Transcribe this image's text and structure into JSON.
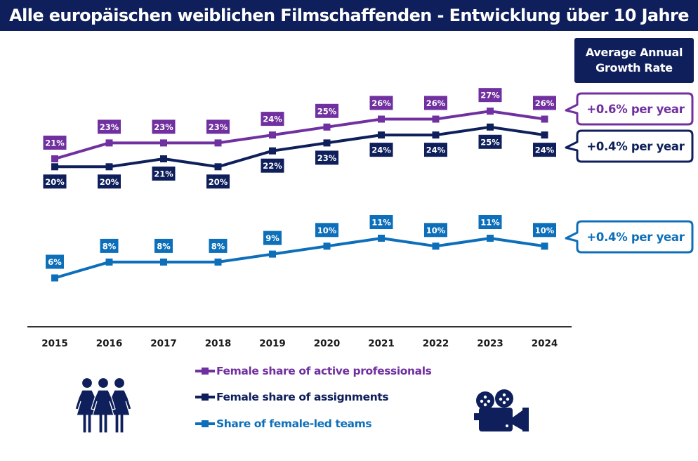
{
  "header": {
    "title": "Alle europäischen weiblichen Filmschaffenden - Entwicklung über 10 Jahre"
  },
  "growth_panel": {
    "title_line1": "Average Annual",
    "title_line2": "Growth Rate",
    "callouts": [
      {
        "series": "active",
        "text": "+0.6% per year",
        "color": "#7030a0"
      },
      {
        "series": "assignments",
        "text": "+0.4% per year",
        "color": "#0e1f5b"
      },
      {
        "series": "teams",
        "text": "+0.4% per year",
        "color": "#0d6fba"
      }
    ]
  },
  "icons": {
    "left": "three-women-icon",
    "right": "film-camera-icon"
  },
  "chart_data": {
    "type": "line",
    "title": "Alle europäischen weiblichen Filmschaffenden - Entwicklung über 10 Jahre",
    "xlabel": "",
    "ylabel": "",
    "x": [
      "2015",
      "2016",
      "2017",
      "2018",
      "2019",
      "2020",
      "2021",
      "2022",
      "2023",
      "2024"
    ],
    "ylim": [
      5,
      28
    ],
    "grid": false,
    "legend_position": "bottom",
    "value_suffix": "%",
    "series": [
      {
        "key": "active",
        "name": "Female share of active professionals",
        "color": "#7030a0",
        "label_position": "above",
        "values": [
          21,
          23,
          23,
          23,
          24,
          25,
          26,
          26,
          27,
          26
        ]
      },
      {
        "key": "assignments",
        "name": "Female share of assignments",
        "color": "#0e1f5b",
        "label_position": "below",
        "values": [
          20,
          20,
          21,
          20,
          22,
          23,
          24,
          24,
          25,
          24
        ]
      },
      {
        "key": "teams",
        "name": "Share of female-led teams",
        "color": "#0d6fba",
        "label_position": "above",
        "values": [
          6,
          8,
          8,
          8,
          9,
          10,
          11,
          10,
          11,
          10
        ]
      }
    ],
    "annotations": [
      "+0.6% per year",
      "+0.4% per year",
      "+0.4% per year"
    ]
  }
}
